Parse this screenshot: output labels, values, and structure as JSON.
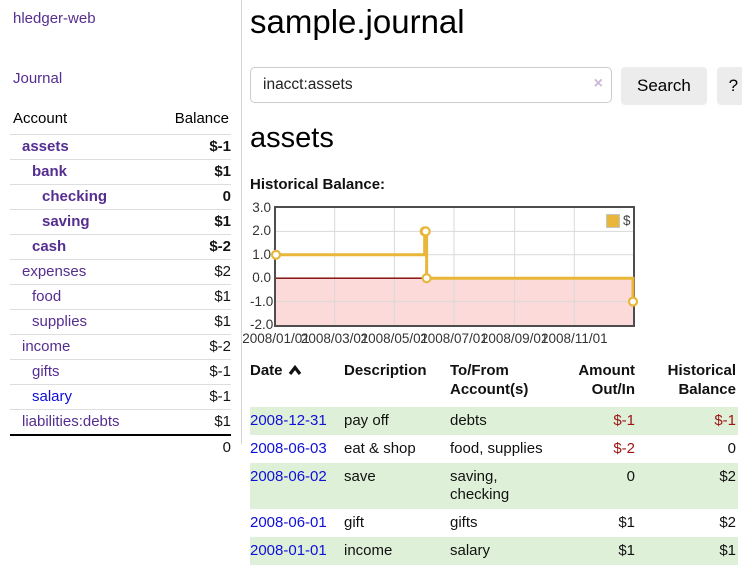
{
  "colors": {
    "accent_purple": "#552e90",
    "link_blue": "#0f0fd8",
    "negative_red": "#9d1414",
    "negative_faded_red": "#c07f7f",
    "row_stripe_green": "#dff0d8",
    "chart_gold": "#e8b73a",
    "chart_negative_region_pink": "#fcdada",
    "chart_zero_line": "#7a0000"
  },
  "sidebar": {
    "brand": "hledger-web",
    "nav_journal": "Journal",
    "accounts": {
      "col_account": "Account",
      "col_balance": "Balance",
      "rows": [
        {
          "name": "assets",
          "balance": "$-1",
          "depth": 1,
          "emph": true,
          "neg": "strong"
        },
        {
          "name": "bank",
          "balance": "$1",
          "depth": 2,
          "emph": true,
          "neg": "none"
        },
        {
          "name": "checking",
          "balance": "0",
          "depth": 3,
          "emph": true,
          "neg": "none"
        },
        {
          "name": "saving",
          "balance": "$1",
          "depth": 3,
          "emph": true,
          "neg": "none"
        },
        {
          "name": "cash",
          "balance": "$-2",
          "depth": 2,
          "emph": true,
          "neg": "strong"
        },
        {
          "name": "expenses",
          "balance": "$2",
          "depth": 1,
          "emph": false,
          "neg": "none"
        },
        {
          "name": "food",
          "balance": "$1",
          "depth": 2,
          "emph": false,
          "neg": "none"
        },
        {
          "name": "supplies",
          "balance": "$1",
          "depth": 2,
          "emph": false,
          "neg": "none"
        },
        {
          "name": "income",
          "balance": "$-2",
          "depth": 1,
          "emph": false,
          "neg": "faded"
        },
        {
          "name": "gifts",
          "balance": "$-1",
          "depth": 2,
          "emph": false,
          "neg": "faded"
        },
        {
          "name": "salary",
          "balance": "$-1",
          "depth": 2,
          "emph": false,
          "neg": "faded",
          "link_blue": true
        },
        {
          "name": "liabilities:debts",
          "balance": "$1",
          "depth": 1,
          "emph": false,
          "neg": "none"
        }
      ],
      "total": "0"
    }
  },
  "main": {
    "title": "sample.journal",
    "search": {
      "value": "inacct:assets",
      "clear_icon": "×",
      "search_button": "Search",
      "help_button": "?"
    },
    "account_heading": "assets",
    "section_label": "Historical Balance:",
    "register": {
      "headers": {
        "date": "Date",
        "description": "Description",
        "accounts": "To/From Account(s)",
        "amount": "Amount Out/In",
        "balance": "Historical Balance"
      },
      "rows": [
        {
          "date": "2008-12-31",
          "description": "pay off",
          "accounts": "debts",
          "amount": "$-1",
          "amount_neg": true,
          "balance": "$-1",
          "balance_neg": true
        },
        {
          "date": "2008-06-03",
          "description": "eat & shop",
          "accounts": "food, supplies",
          "amount": "$-2",
          "amount_neg": true,
          "balance": "0",
          "balance_neg": false
        },
        {
          "date": "2008-06-02",
          "description": "save",
          "accounts": "saving, checking",
          "amount": "0",
          "amount_neg": false,
          "balance": "$2",
          "balance_neg": false
        },
        {
          "date": "2008-06-01",
          "description": "gift",
          "accounts": "gifts",
          "amount": "$1",
          "amount_neg": false,
          "balance": "$2",
          "balance_neg": false
        },
        {
          "date": "2008-01-01",
          "description": "income",
          "accounts": "salary",
          "amount": "$1",
          "amount_neg": false,
          "balance": "$1",
          "balance_neg": false
        }
      ]
    }
  },
  "chart_data": {
    "type": "line",
    "step": true,
    "title": "Historical Balance",
    "series": [
      {
        "name": "$",
        "color": "#e8b73a",
        "points": [
          [
            "2008-01-01",
            1
          ],
          [
            "2008-06-01",
            2
          ],
          [
            "2008-06-02",
            2
          ],
          [
            "2008-06-03",
            0
          ],
          [
            "2008-12-31",
            -1
          ]
        ]
      }
    ],
    "ylim": [
      -2,
      3
    ],
    "yticks": [
      3,
      2,
      1,
      0,
      -1,
      -2
    ],
    "ytick_labels": [
      "3.0",
      "2.0",
      "1.0",
      "0.0",
      "-1.0",
      "-2.0"
    ],
    "xlim": [
      "2008-01-01",
      "2008-12-31"
    ],
    "xticks": [
      "2008-01-01",
      "2008-03-01",
      "2008-05-01",
      "2008-07-01",
      "2008-09-01",
      "2008-11-01"
    ],
    "xtick_labels": [
      "2008/01/01",
      "2008/03/01",
      "2008/05/01",
      "2008/07/01",
      "2008/09/01",
      "2008/11/01"
    ],
    "grid": true,
    "legend": {
      "label": "$",
      "position": "top-right"
    },
    "negative_region_color": "#fcdada",
    "zero_line_color": "#7a0000"
  }
}
